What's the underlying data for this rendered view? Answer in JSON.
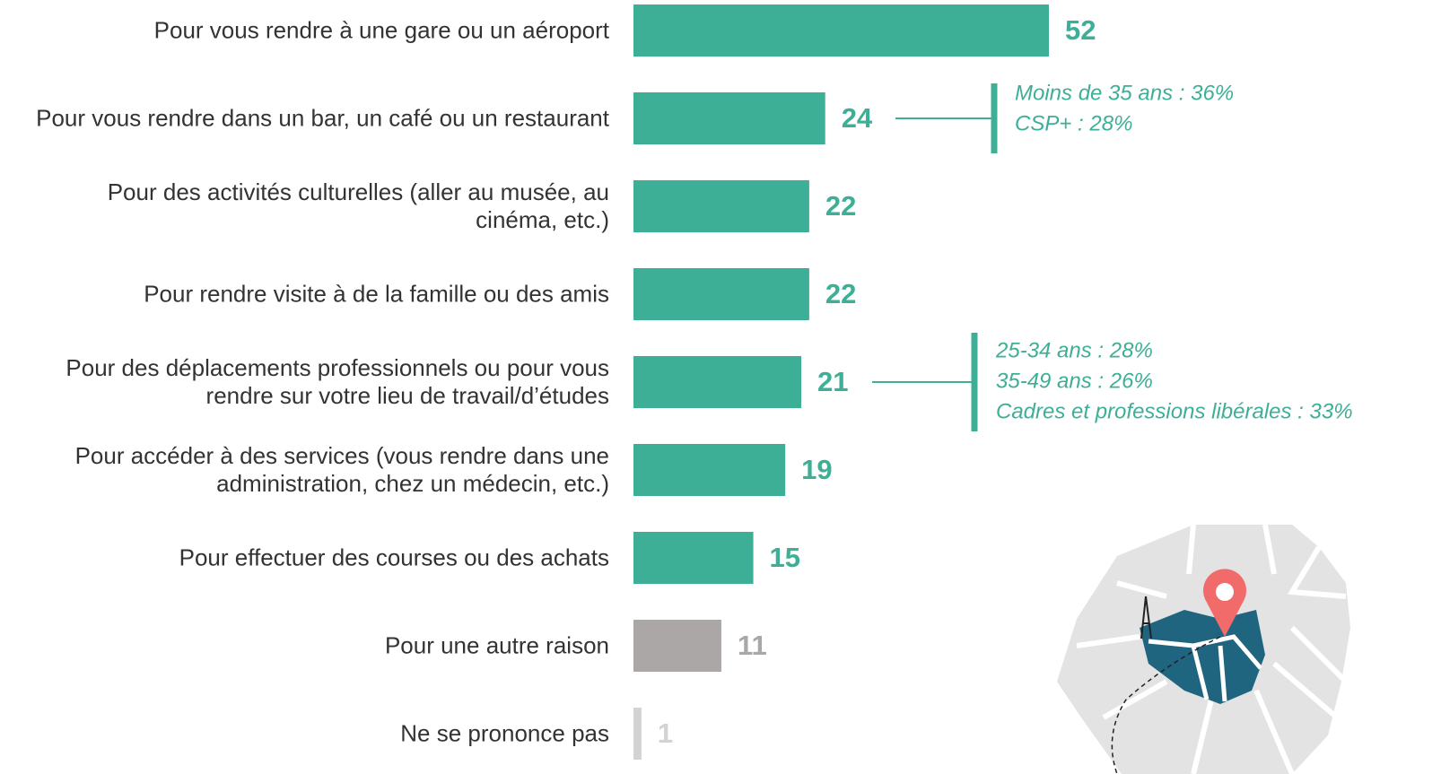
{
  "chart_data": {
    "type": "bar",
    "orientation": "horizontal",
    "categories": [
      "Pour vous rendre à une gare ou un aéroport",
      "Pour vous rendre dans un bar, un café ou un restaurant",
      "Pour des activités culturelles (aller au musée, au\ncinéma, etc.)",
      "Pour rendre visite à de la famille ou des amis",
      "Pour des déplacements professionnels ou pour vous\nrendre sur votre lieu de travail/d’études",
      "Pour accéder à des services (vous rendre dans une\nadministration, chez un médecin, etc.)",
      "Pour effectuer des courses ou des achats",
      "Pour une autre raison",
      "Ne se prononce pas"
    ],
    "values": [
      52,
      24,
      22,
      22,
      21,
      19,
      15,
      11,
      1
    ],
    "colors": [
      "#3daf96",
      "#3daf96",
      "#3daf96",
      "#3daf96",
      "#3daf96",
      "#3daf96",
      "#3daf96",
      "#aaa7a6",
      "#d3d3d3"
    ],
    "annotations": [
      {
        "lines": [
          "Moins de 35 ans : 36%",
          "CSP+ : 28%"
        ]
      },
      {
        "lines": [
          "25-34 ans : 28%",
          "35-49 ans : 26%",
          "Cadres et professions libérales : 33%"
        ]
      }
    ]
  }
}
